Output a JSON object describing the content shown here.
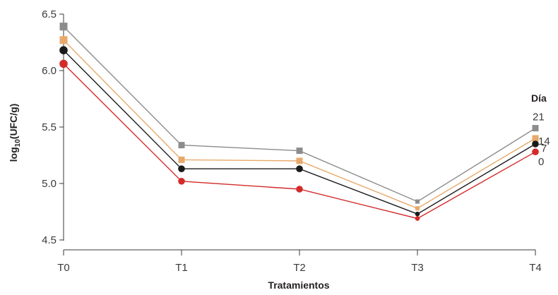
{
  "chart_data": {
    "type": "line",
    "xlabel": "Tratamientos",
    "ylabel_main": "log",
    "ylabel_sub": "10",
    "ylabel_rest": "(UFC/g)",
    "ylim": [
      4.5,
      6.5
    ],
    "yticks": [
      "4.5",
      "5.0",
      "5.5",
      "6.0",
      "6.5"
    ],
    "ytick_values": [
      4.5,
      5.0,
      5.5,
      6.0,
      6.5
    ],
    "categories": [
      "T0",
      "T1",
      "T2",
      "T3",
      "T4"
    ],
    "legend_title": "Día",
    "grid": false,
    "series": [
      {
        "name": "21",
        "marker": "square",
        "color": "#8c8c8c",
        "values": [
          6.39,
          5.34,
          5.29,
          4.84,
          5.49
        ]
      },
      {
        "name": "14",
        "marker": "square",
        "color": "#e8a96a",
        "values": [
          6.27,
          5.21,
          5.2,
          4.78,
          5.4
        ]
      },
      {
        "name": "7",
        "marker": "circle",
        "color": "#1a1a1a",
        "values": [
          6.18,
          5.13,
          5.13,
          4.73,
          5.35
        ]
      },
      {
        "name": "0",
        "marker": "circle",
        "color": "#d42a2a",
        "values": [
          6.06,
          5.02,
          4.95,
          4.69,
          5.28
        ]
      }
    ]
  }
}
